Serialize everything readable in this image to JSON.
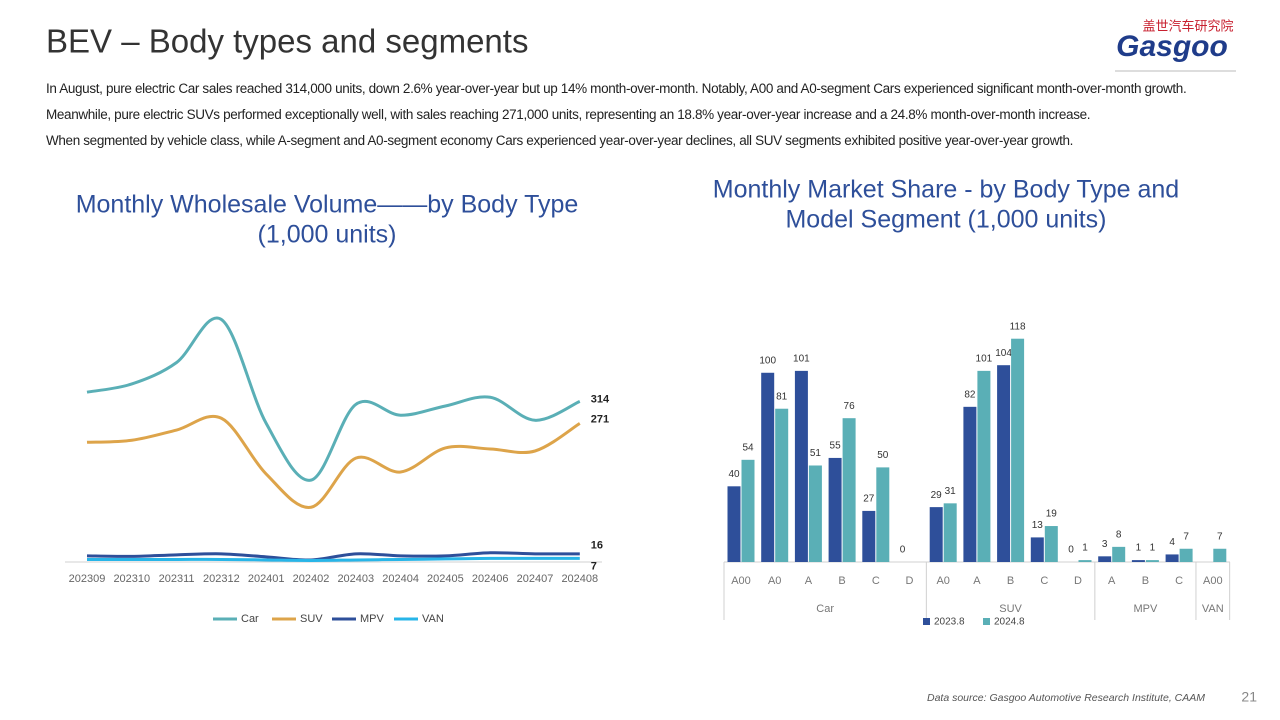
{
  "page": {
    "title": "BEV – Body types and segments",
    "paragraphs": [
      "In August, pure electric Car sales reached 314,000 units, down 2.6% year-over-year but up 14% month-over-month. Notably, A00 and A0-segment Cars experienced significant month-over-month growth. Meanwhile, pure electric SUVs performed exceptionally well, with sales reaching 271,000 units, representing an 18.8% year-over-year increase and a 24.8% month-over-month increase.",
      "When segmented by vehicle class, while A-segment and A0-segment economy Cars experienced year-over-year declines, all SUV segments exhibited positive year-over-year growth."
    ],
    "logo_cn": "盖世汽车研究院",
    "logo": "Gasgoo",
    "source": "Data source: Gasgoo Automotive Research Institute, CAAM",
    "page_number": "21"
  },
  "chart_data": [
    {
      "type": "line",
      "title": [
        "Monthly Wholesale Volume——by Body Type",
        "(1,000 units)"
      ],
      "categories": [
        "202309",
        "202310",
        "202311",
        "202312",
        "202401",
        "202402",
        "202403",
        "202404",
        "202405",
        "202406",
        "202407",
        "202408"
      ],
      "ylim": [
        0,
        520
      ],
      "series": [
        {
          "name": "Car",
          "color": "#5aafb6",
          "values": [
            332,
            348,
            390,
            474,
            271,
            160,
            308,
            287,
            305,
            322,
            277,
            314
          ]
        },
        {
          "name": "SUV",
          "color": "#dda44a",
          "values": [
            234,
            238,
            258,
            281,
            172,
            107,
            203,
            176,
            223,
            221,
            217,
            271
          ]
        },
        {
          "name": "MPV",
          "color": "#2e4f9a",
          "values": [
            12,
            11,
            14,
            16,
            10,
            4,
            16,
            12,
            12,
            18,
            16,
            16
          ]
        },
        {
          "name": "VAN",
          "color": "#27b5e8",
          "values": [
            5,
            5,
            5,
            5,
            4,
            3,
            4,
            5,
            6,
            7,
            7,
            7
          ]
        }
      ]
    },
    {
      "type": "bar",
      "title": [
        "Monthly Market Share - by Body Type and",
        "Model Segment (1,000 units)"
      ],
      "groups": [
        {
          "name": "Car",
          "categories": [
            "A00",
            "A0",
            "A",
            "B",
            "C",
            "D"
          ]
        },
        {
          "name": "SUV",
          "categories": [
            "A0",
            "A",
            "B",
            "C",
            "D"
          ]
        },
        {
          "name": "MPV",
          "categories": [
            "A",
            "B",
            "C"
          ]
        },
        {
          "name": "VAN",
          "categories": [
            "A00"
          ]
        }
      ],
      "ylim": [
        0,
        130
      ],
      "series": [
        {
          "name": "2023.8",
          "color": "#2e4f9a",
          "values": [
            40,
            100,
            101,
            55,
            27,
            0,
            29,
            82,
            104,
            13,
            0,
            3,
            1,
            4,
            null
          ]
        },
        {
          "name": "2024.8",
          "color": "#5aafb6",
          "values": [
            54,
            81,
            51,
            76,
            50,
            null,
            31,
            101,
            118,
            19,
            1,
            8,
            1,
            7,
            7
          ]
        }
      ]
    }
  ]
}
